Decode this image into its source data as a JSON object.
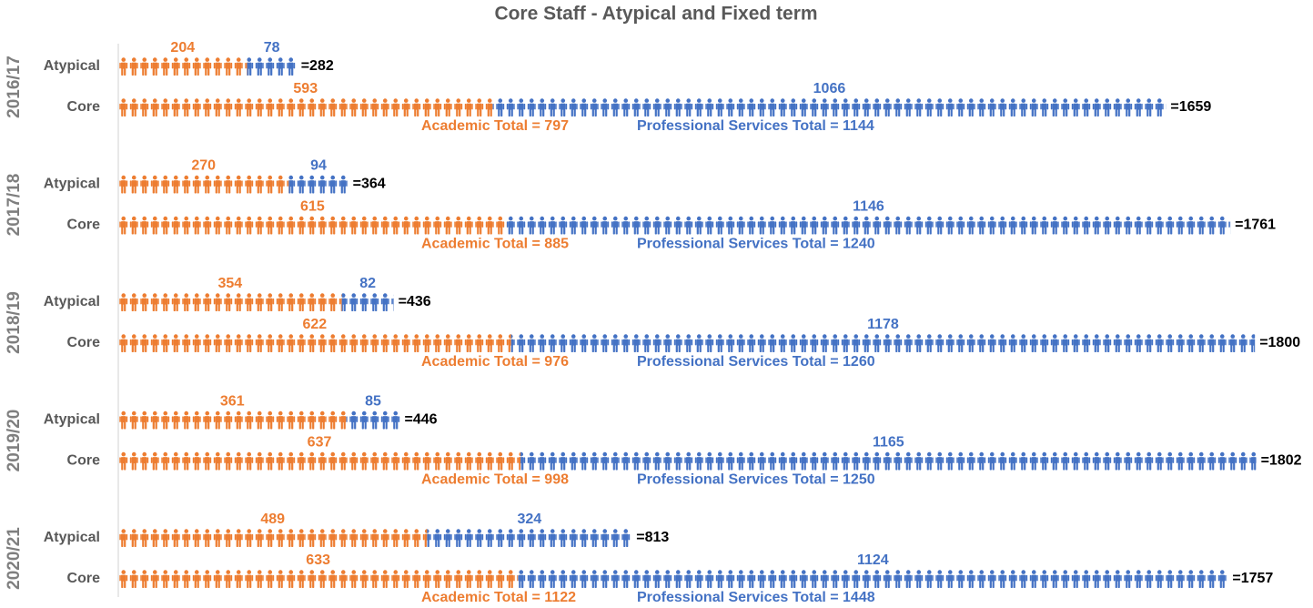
{
  "chart_data": {
    "type": "pictogram_bar",
    "title": "Core Staff - Atypical and Fixed term",
    "colors": {
      "academic": "#ed7d31",
      "professional": "#4472c4"
    },
    "groups": [
      {
        "label": "2016/17",
        "rows": [
          {
            "label": "Atypical",
            "academic": 204,
            "professional": 78,
            "total": {
              "value": 282,
              "label": "=282"
            }
          },
          {
            "label": "Core",
            "academic": 593,
            "professional": 1066,
            "total": {
              "value": 1659,
              "label": "=1659"
            }
          }
        ],
        "academic_total": "Academic Total = 797",
        "professional_total": "Professional Services Total = 1144"
      },
      {
        "label": "2017/18",
        "rows": [
          {
            "label": "Atypical",
            "academic": 270,
            "professional": 94,
            "total": {
              "value": 364,
              "label": "=364"
            }
          },
          {
            "label": "Core",
            "academic": 615,
            "professional": 1146,
            "total": {
              "value": 1761,
              "label": "=1761"
            }
          }
        ],
        "academic_total": "Academic Total = 885",
        "professional_total": "Professional Services Total = 1240"
      },
      {
        "label": "2018/19",
        "rows": [
          {
            "label": "Atypical",
            "academic": 354,
            "professional": 82,
            "total": {
              "value": 436,
              "label": "=436"
            }
          },
          {
            "label": "Core",
            "academic": 622,
            "professional": 1178,
            "total": {
              "value": 1800,
              "label": "=1800"
            }
          }
        ],
        "academic_total": "Academic Total = 976",
        "professional_total": "Professional Services Total = 1260"
      },
      {
        "label": "2019/20",
        "rows": [
          {
            "label": "Atypical",
            "academic": 361,
            "professional": 85,
            "total": {
              "value": 446,
              "label": "=446"
            }
          },
          {
            "label": "Core",
            "academic": 637,
            "professional": 1165,
            "total": {
              "value": 1802,
              "label": "=1802"
            }
          }
        ],
        "academic_total": "Academic Total = 998",
        "professional_total": "Professional Services Total = 1250"
      },
      {
        "label": "2020/21",
        "rows": [
          {
            "label": "Atypical",
            "academic": 489,
            "professional": 324,
            "total": {
              "value": 813,
              "label": "=813"
            }
          },
          {
            "label": "Core",
            "academic": 633,
            "professional": 1124,
            "total": {
              "value": 1757,
              "label": "=1757"
            }
          }
        ],
        "academic_total": "Academic Total = 1122",
        "professional_total": "Professional Services Total = 1448"
      }
    ]
  }
}
